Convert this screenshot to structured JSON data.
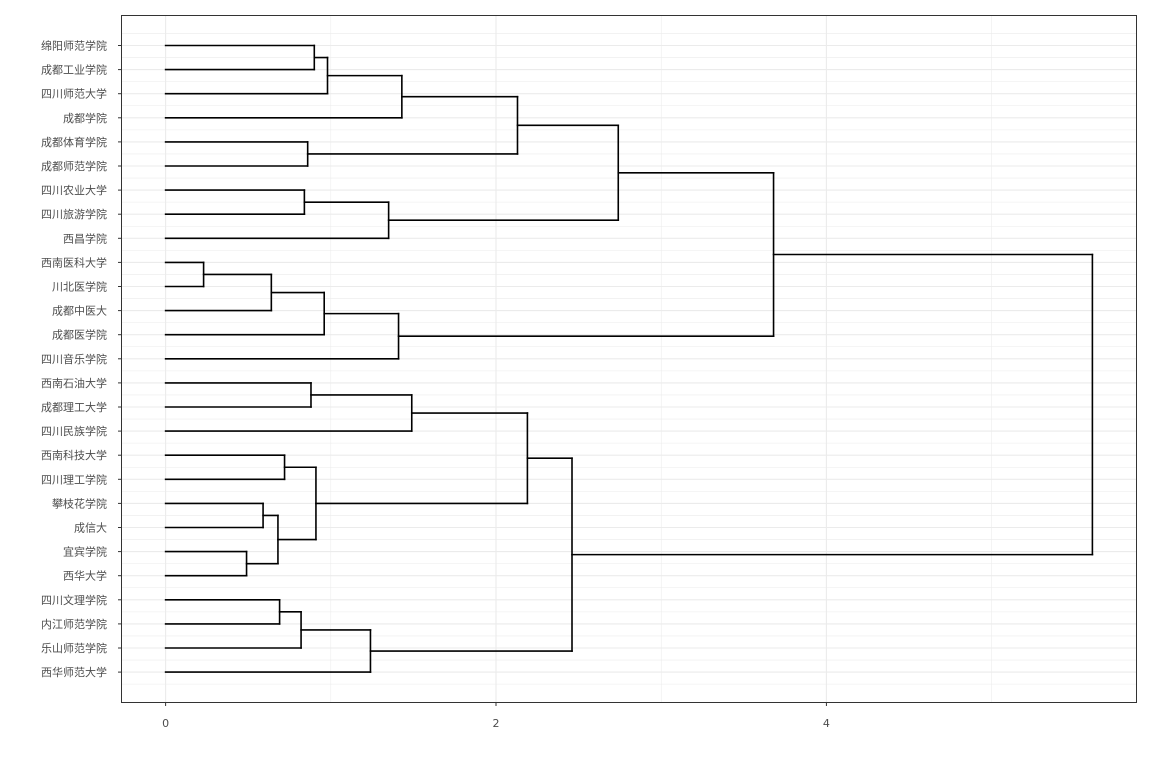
{
  "chart_data": {
    "type": "dendrogram",
    "orientation": "horizontal",
    "title": "",
    "xlabel": "",
    "ylabel": "",
    "xlim": [
      -0.27,
      5.88
    ],
    "x_ticks": [
      0,
      2,
      4
    ],
    "x_tick_labels": [
      "0",
      "2",
      "4"
    ],
    "grid": true,
    "legend": "none",
    "colors": {
      "background": "#ffffff",
      "grid": "#ebebeb",
      "line": "#000000",
      "border": "#333333",
      "tick_text": "#4d4d4d"
    },
    "leaves": [
      "绵阳师范学院",
      "成都工业学院",
      "四川师范大学",
      "成都学院",
      "成都体育学院",
      "成都师范学院",
      "四川农业大学",
      "四川旅游学院",
      "西昌学院",
      "西南医科大学",
      "川北医学院",
      "成都中医大",
      "成都医学院",
      "四川音乐学院",
      "西南石油大学",
      "成都理工大学",
      "四川民族学院",
      "西南科技大学",
      "四川理工学院",
      "攀枝花学院",
      "成信大",
      "宜宾学院",
      "西华大学",
      "四川文理学院",
      "内江师范学院",
      "乐山师范学院",
      "西华师范大学"
    ],
    "merges": [
      {
        "left": "L:西南医科大学",
        "right": "L:川北医学院",
        "height": 0.23
      },
      {
        "left": "L:宜宾学院",
        "right": "L:西华大学",
        "height": 0.49
      },
      {
        "left": "L:攀枝花学院",
        "right": "L:成信大",
        "height": 0.59
      },
      {
        "left": "M:1",
        "right": "L:成都中医大",
        "height": 0.64
      },
      {
        "left": "M:3",
        "right": "M:2",
        "height": 0.68
      },
      {
        "left": "L:四川文理学院",
        "right": "L:内江师范学院",
        "height": 0.69
      },
      {
        "left": "L:西南科技大学",
        "right": "L:四川理工学院",
        "height": 0.72
      },
      {
        "left": "M:6",
        "right": "L:乐山师范学院",
        "height": 0.82
      },
      {
        "left": "L:四川农业大学",
        "right": "L:四川旅游学院",
        "height": 0.84
      },
      {
        "left": "L:成都体育学院",
        "right": "L:成都师范学院",
        "height": 0.86
      },
      {
        "left": "L:西南石油大学",
        "right": "L:成都理工大学",
        "height": 0.88
      },
      {
        "left": "L:绵阳师范学院",
        "right": "L:成都工业学院",
        "height": 0.9
      },
      {
        "left": "M:7",
        "right": "M:5",
        "height": 0.91
      },
      {
        "left": "M:4",
        "right": "L:成都医学院",
        "height": 0.96
      },
      {
        "left": "M:12",
        "right": "L:四川师范大学",
        "height": 0.98
      },
      {
        "left": "M:8",
        "right": "L:西华师范大学",
        "height": 1.24
      },
      {
        "left": "M:9",
        "right": "L:西昌学院",
        "height": 1.35
      },
      {
        "left": "M:14",
        "right": "L:四川音乐学院",
        "height": 1.41
      },
      {
        "left": "M:15",
        "right": "L:成都学院",
        "height": 1.43
      },
      {
        "left": "M:11",
        "right": "L:四川民族学院",
        "height": 1.49
      },
      {
        "left": "M:19",
        "right": "M:10",
        "height": 2.13
      },
      {
        "left": "M:20",
        "right": "M:13",
        "height": 2.19
      },
      {
        "left": "M:22",
        "right": "M:16",
        "height": 2.46
      },
      {
        "left": "M:21",
        "right": "M:17",
        "height": 2.74
      },
      {
        "left": "M:24",
        "right": "M:18",
        "height": 3.68
      },
      {
        "left": "M:25",
        "right": "M:23",
        "height": 5.61
      }
    ]
  }
}
